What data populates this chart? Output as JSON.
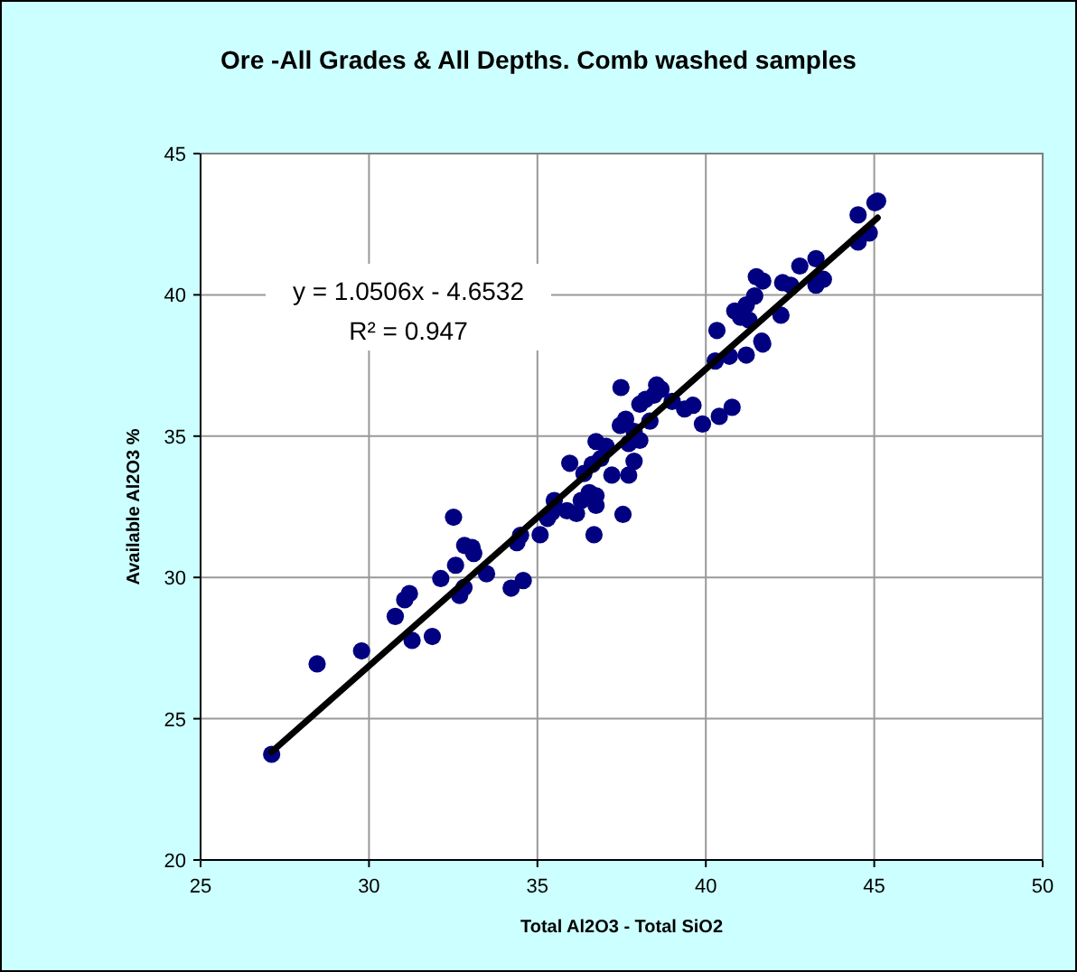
{
  "chart_data": {
    "type": "scatter",
    "title": "Ore -All Grades & All Depths. Comb washed samples",
    "xlabel": "Total Al2O3 - Total SiO2",
    "ylabel": "Available Al2O3 %",
    "xlim": [
      25,
      50
    ],
    "ylim": [
      20,
      45
    ],
    "xticks": [
      25,
      30,
      35,
      40,
      45,
      50
    ],
    "yticks": [
      20,
      25,
      30,
      35,
      40,
      45
    ],
    "grid": true,
    "marker": "circle",
    "annotations": [
      "y = 1.0506x - 4.6532",
      "R² = 0.947"
    ],
    "series": [
      {
        "type": "scatter",
        "color": "#000080",
        "x": [
          27.11,
          28.46,
          29.78,
          30.78,
          31.06,
          31.2,
          31.28,
          31.88,
          32.13,
          32.51,
          32.57,
          32.69,
          32.82,
          32.84,
          33.06,
          33.11,
          33.49,
          34.22,
          34.58,
          34.39,
          34.5,
          35.08,
          35.3,
          35.43,
          35.5,
          35.88,
          36.16,
          35.96,
          36.3,
          36.54,
          36.74,
          36.74,
          36.68,
          37.54,
          36.74,
          36.88,
          37.04,
          37.21,
          36.63,
          36.38,
          37.48,
          37.46,
          37.62,
          37.71,
          37.87,
          37.71,
          38.04,
          37.87,
          38.04,
          38.21,
          38.34,
          38.54,
          38.67,
          38.46,
          39.0,
          39.37,
          39.62,
          39.9,
          40.4,
          40.78,
          40.28,
          40.7,
          40.33,
          40.86,
          41.03,
          41.2,
          41.45,
          41.28,
          41.2,
          41.66,
          41.69,
          41.5,
          41.69,
          42.23,
          42.28,
          42.52,
          42.79,
          43.27,
          43.27,
          43.49,
          44.52,
          44.52,
          44.85,
          45.02,
          45.1
        ],
        "values": [
          23.74,
          26.94,
          27.4,
          28.62,
          29.21,
          29.43,
          27.77,
          27.91,
          29.96,
          32.13,
          30.43,
          29.36,
          29.64,
          31.13,
          31.06,
          30.85,
          30.13,
          29.62,
          29.89,
          31.23,
          31.49,
          31.51,
          32.09,
          32.3,
          32.72,
          32.36,
          32.26,
          34.04,
          32.72,
          33.0,
          32.55,
          32.89,
          31.51,
          32.23,
          34.81,
          34.21,
          34.64,
          33.62,
          34.0,
          33.68,
          36.72,
          35.38,
          35.6,
          33.62,
          34.11,
          34.74,
          34.85,
          35.17,
          36.13,
          36.3,
          35.53,
          36.81,
          36.66,
          36.45,
          36.23,
          35.96,
          36.09,
          35.43,
          35.7,
          36.02,
          37.66,
          37.83,
          38.74,
          39.43,
          39.21,
          39.64,
          39.96,
          39.11,
          37.87,
          38.36,
          38.26,
          40.64,
          40.49,
          39.28,
          40.43,
          40.34,
          41.02,
          41.28,
          40.34,
          40.55,
          42.83,
          41.87,
          42.19,
          43.26,
          43.32
        ]
      },
      {
        "type": "line",
        "color": "#000000",
        "marker": "none",
        "x": [
          27.1,
          45.1
        ],
        "values": [
          23.82,
          42.73
        ]
      }
    ]
  }
}
